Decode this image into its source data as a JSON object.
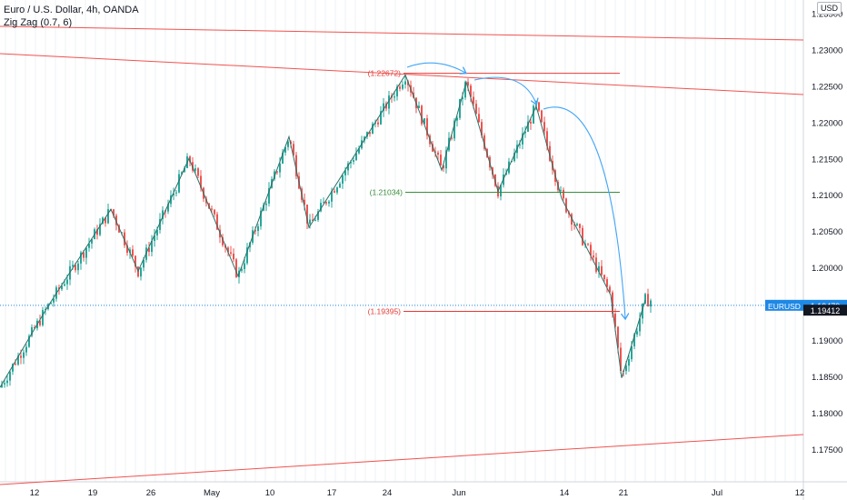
{
  "legend": {
    "symbol": "Euro / U.S. Dollar, 4h, OANDA",
    "indicator": "Zig Zag (0.7, 6)"
  },
  "currency": "USD",
  "colors": {
    "up": "#26a69a",
    "down": "#ef5350",
    "zigzag": "#2f6f66",
    "trendline": "#ef5350",
    "level_red": "#e53935",
    "level_green": "#388e3c",
    "arrow": "#42a5f5",
    "price_tag": "#1e88e5",
    "prev_tag": "#131722"
  },
  "chart_data": {
    "type": "candlestick",
    "x_ticks": [
      "12",
      "19",
      "26",
      "May",
      "10",
      "17",
      "24",
      "Jun",
      "14",
      "21",
      "Jul",
      "12"
    ],
    "y_ticks": [
      "1.23500",
      "1.23000",
      "1.22500",
      "1.22000",
      "1.21500",
      "1.21000",
      "1.20500",
      "1.20000",
      "1.19500",
      "1.19000",
      "1.18500",
      "1.18000",
      "1.17500"
    ],
    "ylim": [
      1.1705,
      1.2368
    ],
    "grid": "vertical",
    "zigzag": [
      1.1835,
      1.1945,
      1.208,
      1.1995,
      1.215,
      1.1988,
      1.218,
      1.2055,
      1.2265,
      1.2134,
      1.2255,
      1.2105,
      1.2222,
      1.2095,
      1.1962,
      1.1848,
      1.1955
    ],
    "levels": [
      {
        "label": "(1.22672)",
        "value": 1.22672,
        "color": "red"
      },
      {
        "label": "(1.21034)",
        "value": 1.21034,
        "color": "green"
      },
      {
        "label": "(1.19395)",
        "value": 1.19395,
        "color": "red"
      }
    ],
    "last_price": {
      "symbol": "EURUSD",
      "value": "1.19479"
    },
    "prev_close": {
      "value": "1.19412"
    }
  }
}
